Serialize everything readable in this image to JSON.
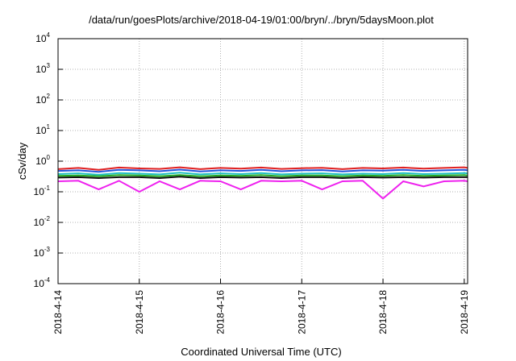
{
  "chart_data": {
    "type": "line",
    "title": "/data/run/goesPlots/archive/2018-04-19/01:00/bryn/../bryn/5daysMoon.plot",
    "xlabel": "Coordinated Universal Time (UTC)",
    "ylabel": "cSv/day",
    "yscale": "log",
    "ylim": [
      0.0001,
      10000
    ],
    "xlim": [
      "2018-04-14",
      "2018-04-19T01:00"
    ],
    "grid": true,
    "x_ticks": [
      "2018-4-14",
      "2018-4-15",
      "2018-4-16",
      "2018-4-17",
      "2018-4-18",
      "2018-4-19"
    ],
    "y_ticks": [
      {
        "base": "10",
        "exp": "-4",
        "value": 0.0001
      },
      {
        "base": "10",
        "exp": "-3",
        "value": 0.001
      },
      {
        "base": "10",
        "exp": "-2",
        "value": 0.01
      },
      {
        "base": "10",
        "exp": "-1",
        "value": 0.1
      },
      {
        "base": "10",
        "exp": "0",
        "value": 1
      },
      {
        "base": "10",
        "exp": "1",
        "value": 10
      },
      {
        "base": "10",
        "exp": "2",
        "value": 100
      },
      {
        "base": "10",
        "exp": "3",
        "value": 1000
      },
      {
        "base": "10",
        "exp": "4",
        "value": 10000
      }
    ],
    "x": [
      "2018-04-14",
      "2018-04-14T06:00",
      "2018-04-14T12:00",
      "2018-04-14T18:00",
      "2018-04-15",
      "2018-04-15T06:00",
      "2018-04-15T12:00",
      "2018-04-15T18:00",
      "2018-04-16",
      "2018-04-16T06:00",
      "2018-04-16T12:00",
      "2018-04-16T18:00",
      "2018-04-17",
      "2018-04-17T06:00",
      "2018-04-17T12:00",
      "2018-04-17T18:00",
      "2018-04-18",
      "2018-04-18T06:00",
      "2018-04-18T12:00",
      "2018-04-18T18:00",
      "2018-04-19",
      "2018-04-19T01:00"
    ],
    "series": [
      {
        "color": "#e02020",
        "values": [
          0.55,
          0.6,
          0.52,
          0.62,
          0.58,
          0.56,
          0.63,
          0.55,
          0.6,
          0.57,
          0.62,
          0.56,
          0.59,
          0.61,
          0.55,
          0.6,
          0.58,
          0.62,
          0.57,
          0.6,
          0.63,
          0.6
        ]
      },
      {
        "color": "#2255dd",
        "values": [
          0.48,
          0.5,
          0.45,
          0.52,
          0.5,
          0.47,
          0.53,
          0.46,
          0.5,
          0.48,
          0.52,
          0.47,
          0.5,
          0.51,
          0.46,
          0.5,
          0.49,
          0.52,
          0.48,
          0.5,
          0.52,
          0.5
        ]
      },
      {
        "color": "#20c0c0",
        "values": [
          0.38,
          0.4,
          0.36,
          0.41,
          0.39,
          0.37,
          0.42,
          0.37,
          0.4,
          0.38,
          0.41,
          0.37,
          0.39,
          0.4,
          0.37,
          0.39,
          0.38,
          0.41,
          0.38,
          0.39,
          0.41,
          0.4
        ]
      },
      {
        "color": "#22aa22",
        "values": [
          0.33,
          0.34,
          0.32,
          0.35,
          0.34,
          0.32,
          0.35,
          0.32,
          0.34,
          0.33,
          0.35,
          0.32,
          0.34,
          0.34,
          0.32,
          0.34,
          0.33,
          0.35,
          0.33,
          0.34,
          0.35,
          0.34
        ]
      },
      {
        "color": "#111111",
        "values": [
          0.29,
          0.3,
          0.28,
          0.3,
          0.3,
          0.28,
          0.31,
          0.28,
          0.3,
          0.29,
          0.3,
          0.28,
          0.3,
          0.3,
          0.28,
          0.3,
          0.29,
          0.3,
          0.29,
          0.3,
          0.3,
          0.3
        ]
      },
      {
        "color": "#ee22ee",
        "values": [
          0.22,
          0.23,
          0.12,
          0.23,
          0.1,
          0.22,
          0.12,
          0.23,
          0.22,
          0.12,
          0.23,
          0.22,
          0.23,
          0.12,
          0.22,
          0.23,
          0.06,
          0.22,
          0.15,
          0.22,
          0.23,
          0.22
        ]
      }
    ]
  }
}
